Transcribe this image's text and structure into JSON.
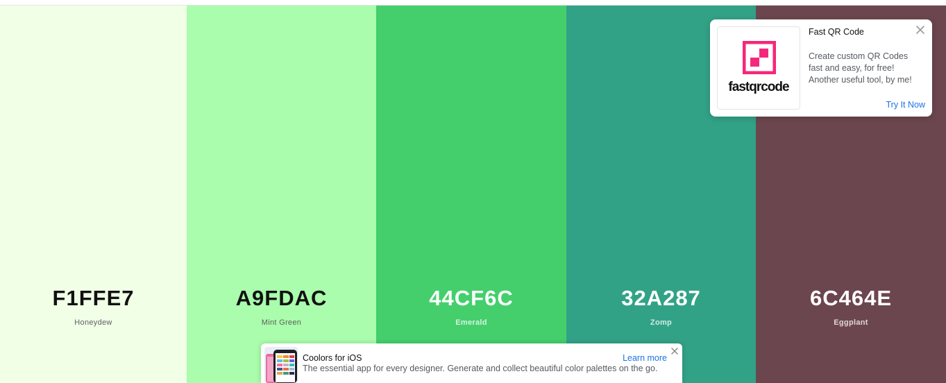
{
  "palette": {
    "swatches": [
      {
        "hex": "F1FFE7",
        "name": "Honeydew",
        "color": "#F1FFE7"
      },
      {
        "hex": "A9FDAC",
        "name": "Mint Green",
        "color": "#A9FDAC"
      },
      {
        "hex": "44CF6C",
        "name": "Emerald",
        "color": "#44CF6C"
      },
      {
        "hex": "32A287",
        "name": "Zomp",
        "color": "#32A287"
      },
      {
        "hex": "6C464E",
        "name": "Eggplant",
        "color": "#6C464E"
      }
    ]
  },
  "qr_popup": {
    "title": "Fast QR Code",
    "logo_text": "fastqrcode",
    "description_lines": [
      "Create custom QR Codes",
      "fast and easy, for free!",
      "Another useful tool, by me!"
    ],
    "cta": "Try It Now",
    "logo_color": "#F5277A",
    "close_icon": "close-icon"
  },
  "ios_banner": {
    "title": "Coolors for iOS",
    "description": "The essential app for every designer. Generate and collect beautiful color palettes on the go.",
    "cta": "Learn more",
    "close_icon": "close-icon"
  },
  "colors": {
    "link": "#1A73E8"
  }
}
